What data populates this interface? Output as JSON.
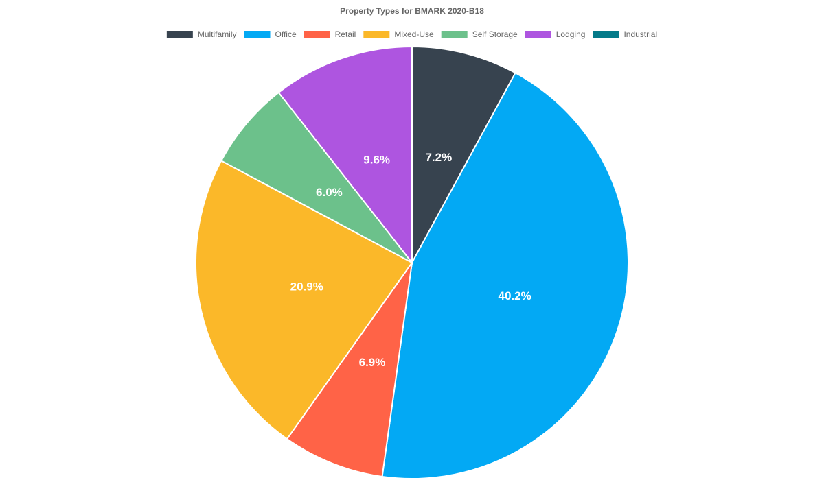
{
  "chart_data": {
    "type": "pie",
    "title": "Property Types for BMARK 2020-B18",
    "categories": [
      "Multifamily",
      "Office",
      "Retail",
      "Mixed-Use",
      "Self Storage",
      "Lodging",
      "Industrial"
    ],
    "values": [
      7.2,
      40.2,
      6.9,
      20.9,
      6.0,
      9.6,
      null
    ],
    "value_labels": [
      "7.2%",
      "40.2%",
      "6.9%",
      "20.9%",
      "6.0%",
      "9.6%",
      null
    ],
    "colors": [
      "#37434f",
      "#03a9f4",
      "#ff6347",
      "#fbb829",
      "#6cc18b",
      "#ae55e0",
      "#047a89"
    ],
    "legend": "top"
  }
}
